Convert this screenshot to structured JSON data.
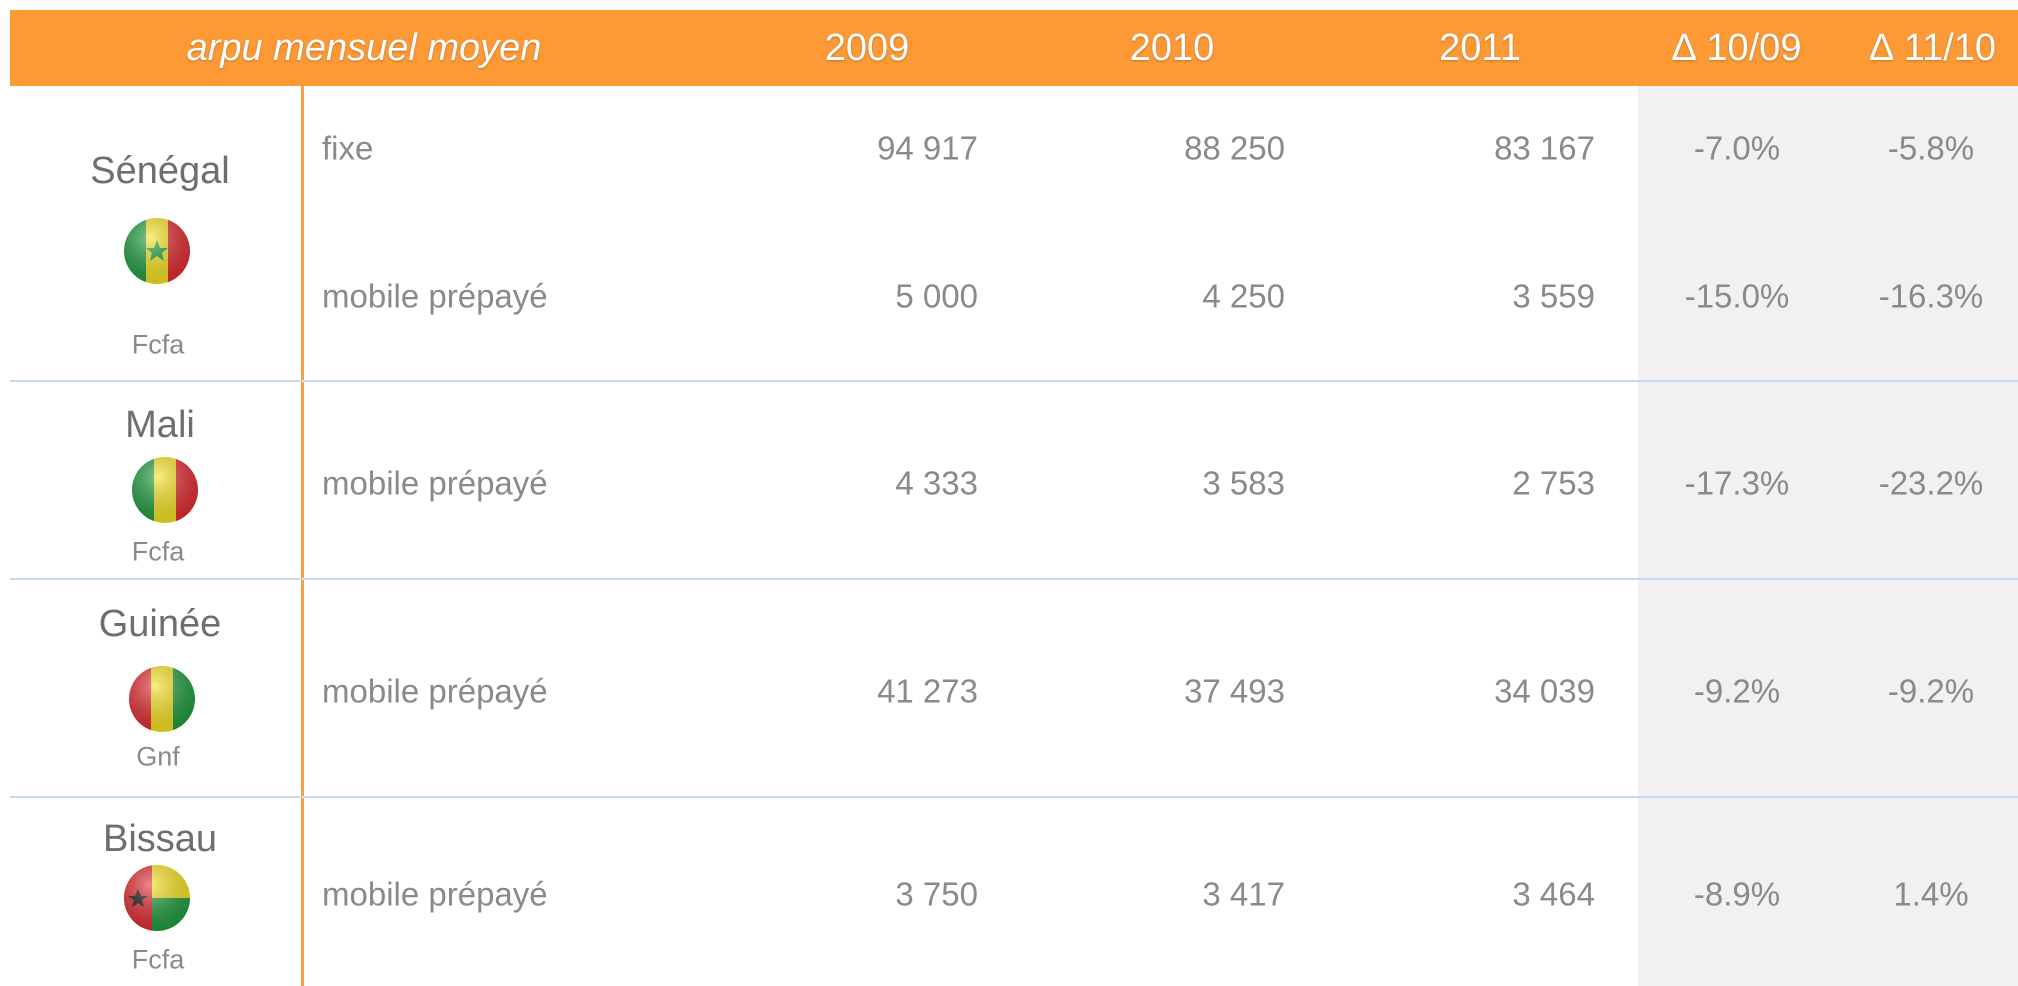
{
  "table": {
    "title": "arpu mensuel moyen",
    "columns": [
      "2009",
      "2010",
      "2011",
      "∆ 10/09",
      "∆ 11/10"
    ],
    "countries": [
      {
        "name": "Sénégal",
        "currency": "Fcfa",
        "rows": [
          {
            "label": "fixe",
            "cells": [
              "94 917",
              "88 250",
              "83 167",
              "-7.0%",
              "-5.8%"
            ]
          },
          {
            "label": "mobile prépayé",
            "cells": [
              "5 000",
              "4 250",
              "3 559",
              "-15.0%",
              "-16.3%"
            ]
          }
        ]
      },
      {
        "name": "Mali",
        "currency": "Fcfa",
        "rows": [
          {
            "label": "mobile prépayé",
            "cells": [
              "4 333",
              "3 583",
              "2 753",
              "-17.3%",
              "-23.2%"
            ]
          }
        ]
      },
      {
        "name": "Guinée",
        "currency": "Gnf",
        "rows": [
          {
            "label": "mobile prépayé",
            "cells": [
              "41 273",
              "37 493",
              "34 039",
              "-9.2%",
              "-9.2%"
            ]
          }
        ]
      },
      {
        "name": "Bissau",
        "currency": "Fcfa",
        "rows": [
          {
            "label": "mobile prépayé",
            "cells": [
              "3 750",
              "3 417",
              "3 464",
              "-8.9%",
              "1.4%"
            ]
          }
        ]
      }
    ]
  }
}
